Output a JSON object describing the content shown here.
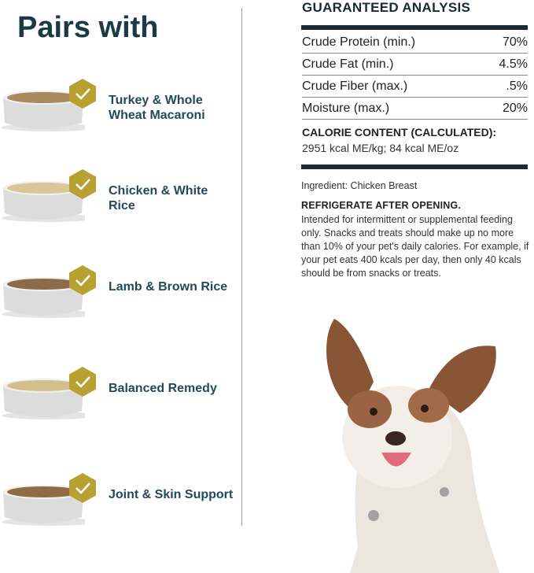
{
  "left": {
    "title": "Pairs with",
    "items": [
      {
        "label": "Turkey & Whole Wheat Macaroni",
        "food_color": "#a88a5c"
      },
      {
        "label": "Chicken & White Rice",
        "food_color": "#d9c79a"
      },
      {
        "label": "Lamb & Brown Rice",
        "food_color": "#8c6a4a"
      },
      {
        "label": "Balanced Remedy",
        "food_color": "#d4bf8c"
      },
      {
        "label": "Joint & Skin Support",
        "food_color": "#8f6b48"
      }
    ],
    "check_badge_color": "#b9a033",
    "icon": "check-hexagon-icon"
  },
  "analysis": {
    "title": "GUARANTEED ANALYSIS",
    "rows": [
      {
        "name": "Crude Protein (min.)",
        "value": "70%"
      },
      {
        "name": "Crude Fat (min.)",
        "value": "4.5%"
      },
      {
        "name": "Crude Fiber (max.)",
        "value": ".5%"
      },
      {
        "name": "Moisture (max.)",
        "value": "20%"
      }
    ],
    "calorie_heading": "CALORIE CONTENT (CALCULATED):",
    "calorie_value": "2951 kcal ME/kg; 84 kcal ME/oz"
  },
  "ingredient": "Ingredient: Chicken Breast",
  "refrigerate": "REFRIGERATE AFTER OPENING.",
  "note": "Intended for intermittent or supplemental feeding only. Snacks and treats should make up no more than 10% of your pet's daily calories. For example, if your pet eats 400 kcals per day, then only 40 kcals should be from snacks or treats."
}
